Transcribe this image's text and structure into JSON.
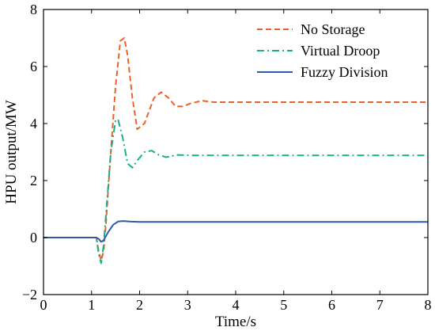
{
  "chart_data": {
    "type": "line",
    "xlabel": "Time/s",
    "ylabel": "HPU output/MW",
    "xlim": [
      0,
      8
    ],
    "ylim": [
      -2,
      8
    ],
    "xticks": [
      0,
      1,
      2,
      3,
      4,
      5,
      6,
      7,
      8
    ],
    "yticks": [
      -2,
      0,
      2,
      4,
      6,
      8
    ],
    "grid": false,
    "legend_position": "top-right",
    "series": [
      {
        "name": "No Storage",
        "color": "#E8622A",
        "dash": "dashed",
        "x": [
          0,
          1.1,
          1.15,
          1.2,
          1.25,
          1.3,
          1.4,
          1.5,
          1.6,
          1.68,
          1.75,
          1.85,
          1.95,
          2.1,
          2.3,
          2.45,
          2.6,
          2.75,
          2.9,
          3.05,
          3.3,
          3.55,
          3.9,
          4.5,
          8
        ],
        "y": [
          0,
          0,
          -0.5,
          -0.8,
          -0.5,
          0.5,
          3.0,
          5.3,
          6.9,
          7.0,
          6.4,
          4.9,
          3.8,
          4.0,
          4.9,
          5.1,
          4.9,
          4.6,
          4.6,
          4.7,
          4.8,
          4.75,
          4.75,
          4.75,
          4.75
        ]
      },
      {
        "name": "Virtual Droop",
        "color": "#1AAE8C",
        "dash": "dashdot",
        "x": [
          0,
          1.1,
          1.15,
          1.2,
          1.25,
          1.3,
          1.4,
          1.5,
          1.55,
          1.65,
          1.75,
          1.85,
          1.95,
          2.1,
          2.25,
          2.4,
          2.55,
          2.8,
          3.1,
          3.5,
          8
        ],
        "y": [
          0,
          0,
          -0.6,
          -0.9,
          -0.3,
          0.8,
          3.0,
          4.1,
          4.15,
          3.5,
          2.6,
          2.45,
          2.7,
          3.0,
          3.05,
          2.9,
          2.82,
          2.9,
          2.88,
          2.88,
          2.88
        ]
      },
      {
        "name": "Fuzzy Division",
        "color": "#2F5AA8",
        "dash": "solid",
        "x": [
          0,
          1.1,
          1.15,
          1.2,
          1.25,
          1.35,
          1.45,
          1.55,
          1.65,
          1.8,
          2.0,
          8
        ],
        "y": [
          0,
          0,
          -0.05,
          -0.15,
          -0.1,
          0.2,
          0.45,
          0.56,
          0.58,
          0.56,
          0.55,
          0.55
        ]
      }
    ]
  }
}
